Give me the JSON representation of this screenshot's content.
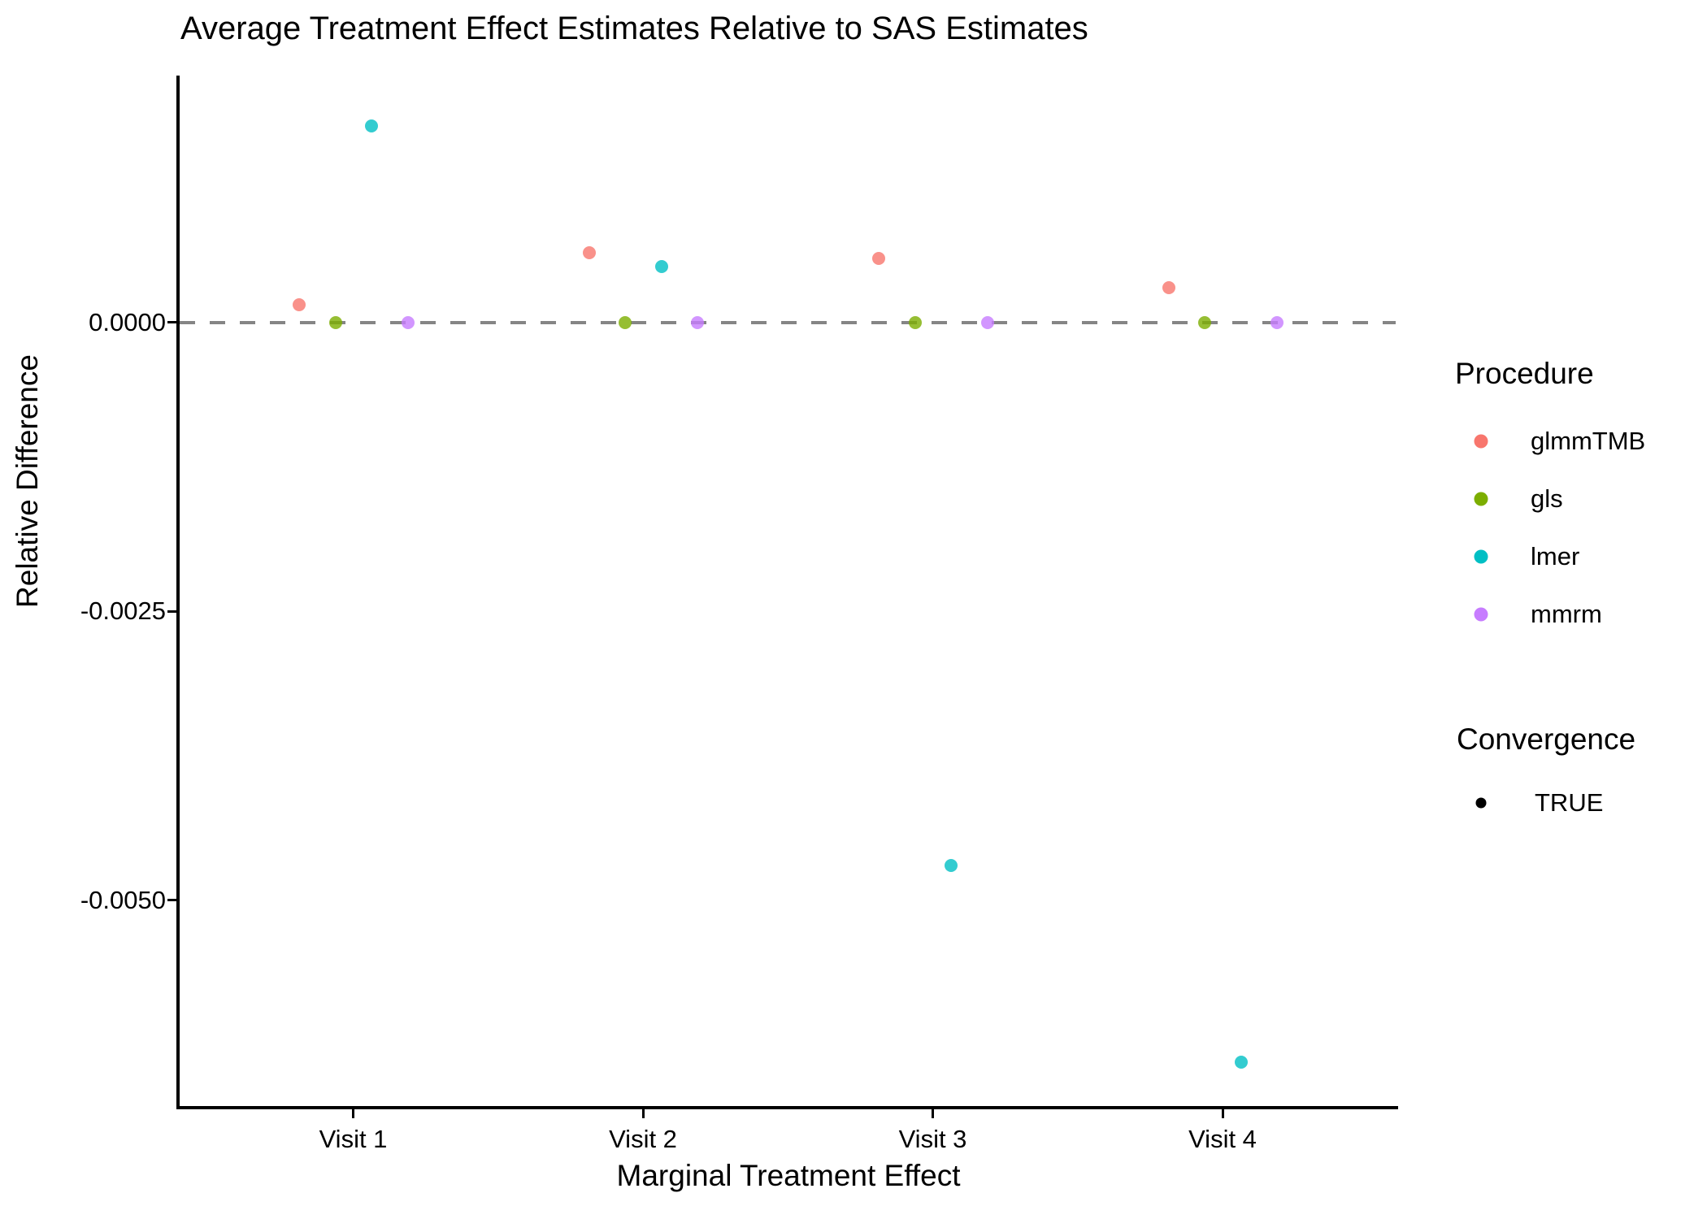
{
  "title": "Average Treatment Effect Estimates Relative to SAS Estimates",
  "axes": {
    "x_title": "Marginal Treatment Effect",
    "y_title": "Relative Difference"
  },
  "legend": {
    "procedure_title": "Procedure",
    "procedures": [
      {
        "label": "glmmTMB",
        "color": "#F8766D"
      },
      {
        "label": "gls",
        "color": "#7CAE00"
      },
      {
        "label": "lmer",
        "color": "#00BFC4"
      },
      {
        "label": "mmrm",
        "color": "#C77CFF"
      }
    ],
    "convergence_title": "Convergence",
    "convergence_items": [
      {
        "label": "TRUE",
        "color": "#000000"
      }
    ]
  },
  "chart_data": {
    "type": "scatter",
    "title": "Average Treatment Effect Estimates Relative to SAS Estimates",
    "xlabel": "Marginal Treatment Effect",
    "ylabel": "Relative Difference",
    "categories": [
      "Visit 1",
      "Visit 2",
      "Visit 3",
      "Visit 4"
    ],
    "series": [
      {
        "name": "glmmTMB",
        "color": "#F8766D",
        "convergence": "TRUE",
        "values": [
          0.00015,
          0.0006,
          0.00055,
          0.0003
        ]
      },
      {
        "name": "gls",
        "color": "#7CAE00",
        "convergence": "TRUE",
        "values": [
          0.0,
          0.0,
          0.0,
          0.0
        ]
      },
      {
        "name": "lmer",
        "color": "#00BFC4",
        "convergence": "TRUE",
        "values": [
          0.0017,
          0.00048,
          -0.0047,
          -0.0064
        ]
      },
      {
        "name": "mmrm",
        "color": "#C77CFF",
        "convergence": "TRUE",
        "values": [
          0.0,
          0.0,
          0.0,
          0.0
        ]
      }
    ],
    "yticks": [
      0.0,
      -0.0025,
      -0.005
    ],
    "ytick_labels": [
      "0.0000",
      "-0.0025",
      "-0.0050"
    ],
    "ylim": [
      -0.0068,
      0.0021
    ],
    "reference_line": {
      "y": 0,
      "style": "dashed",
      "color": "#858585"
    },
    "legend_position": "right",
    "grid": false
  }
}
